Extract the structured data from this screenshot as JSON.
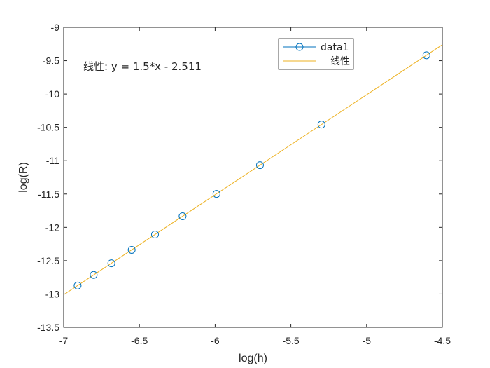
{
  "chart_data": {
    "type": "scatter",
    "xlabel": "log(h)",
    "ylabel": "log(R)",
    "xlim": [
      -7,
      -4.5
    ],
    "ylim": [
      -13.5,
      -9
    ],
    "xticks": [
      -7,
      -6.5,
      -6,
      -5.5,
      -5,
      -4.5
    ],
    "yticks": [
      -9,
      -9.5,
      -10,
      -10.5,
      -11,
      -11.5,
      -12,
      -12.5,
      -13,
      -13.5
    ],
    "xtick_labels": [
      "-7",
      "-6.5",
      "-6",
      "-5.5",
      "-5",
      "-4.5"
    ],
    "ytick_labels": [
      "-9",
      "-9.5",
      "-10",
      "-10.5",
      "-11",
      "-11.5",
      "-12",
      "-12.5",
      "-13",
      "-13.5"
    ],
    "grid": false,
    "legend_position": "top-right",
    "annotation": "线性:  y = 1.5*x - 2.511",
    "series": [
      {
        "name": "data1",
        "kind": "marker-circle",
        "color": "#0072BD",
        "x": [
          -6.908,
          -6.802,
          -6.685,
          -6.551,
          -6.397,
          -6.215,
          -5.991,
          -5.704,
          -5.298,
          -4.605
        ],
        "y": [
          -12.873,
          -12.714,
          -12.539,
          -12.338,
          -12.107,
          -11.834,
          -11.498,
          -11.067,
          -10.458,
          -9.419
        ]
      },
      {
        "name": "线性",
        "kind": "line",
        "color": "#EDB120",
        "fit": {
          "slope": 1.5,
          "intercept": -2.511
        },
        "x": [
          -7,
          -4.5
        ]
      }
    ]
  }
}
